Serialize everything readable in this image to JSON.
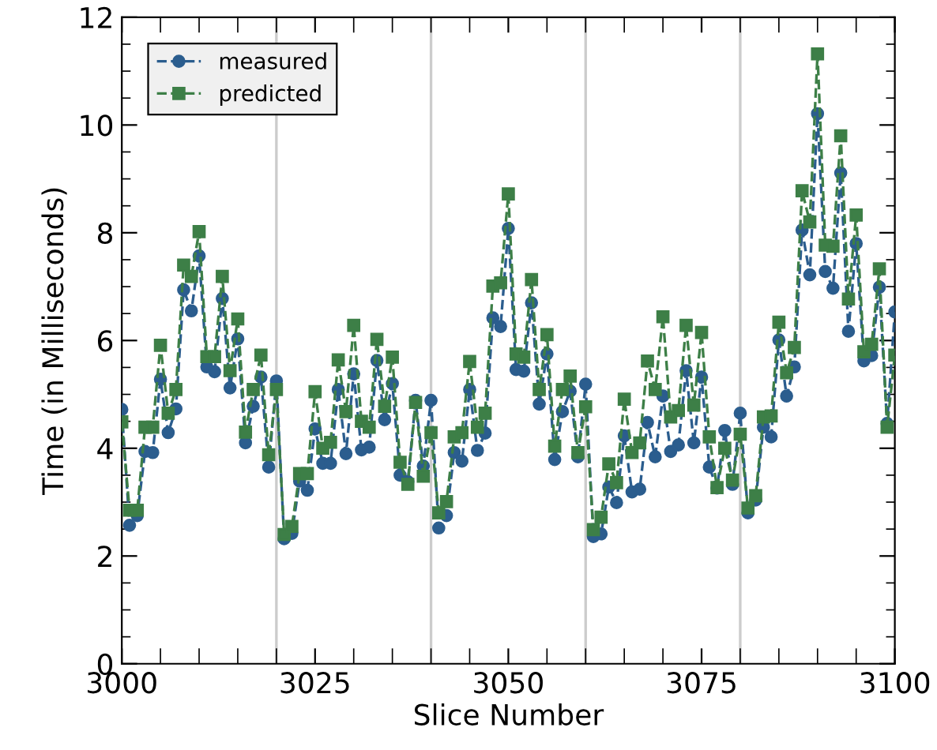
{
  "chart_data": {
    "type": "line",
    "xlabel": "Slice Number",
    "ylabel": "Time (in Milliseconds)",
    "x": [
      3000,
      3001,
      3002,
      3003,
      3004,
      3005,
      3006,
      3007,
      3008,
      3009,
      3010,
      3011,
      3012,
      3013,
      3014,
      3015,
      3016,
      3017,
      3018,
      3019,
      3020,
      3021,
      3022,
      3023,
      3024,
      3025,
      3026,
      3027,
      3028,
      3029,
      3030,
      3031,
      3032,
      3033,
      3034,
      3035,
      3036,
      3037,
      3038,
      3039,
      3040,
      3041,
      3042,
      3043,
      3044,
      3045,
      3046,
      3047,
      3048,
      3049,
      3050,
      3051,
      3052,
      3053,
      3054,
      3055,
      3056,
      3057,
      3058,
      3059,
      3060,
      3061,
      3062,
      3063,
      3064,
      3065,
      3066,
      3067,
      3068,
      3069,
      3070,
      3071,
      3072,
      3073,
      3074,
      3075,
      3076,
      3077,
      3078,
      3079,
      3080,
      3081,
      3082,
      3083,
      3084,
      3085,
      3086,
      3087,
      3088,
      3089,
      3090,
      3091,
      3092,
      3093,
      3094,
      3095,
      3096,
      3097,
      3098,
      3099,
      3100
    ],
    "series": [
      {
        "name": "measured",
        "color": "#2b5d8e",
        "marker": "circle",
        "values": [
          4.72,
          2.57,
          2.75,
          3.94,
          3.92,
          5.28,
          4.29,
          4.73,
          6.94,
          6.55,
          7.57,
          5.51,
          5.42,
          6.78,
          5.12,
          6.03,
          4.1,
          4.78,
          5.32,
          3.65,
          5.25,
          2.32,
          2.42,
          3.39,
          3.22,
          4.36,
          3.72,
          3.72,
          5.09,
          3.9,
          5.38,
          3.97,
          4.02,
          5.63,
          4.53,
          5.2,
          3.5,
          3.38,
          4.89,
          3.67,
          4.89,
          2.52,
          2.75,
          3.92,
          3.76,
          5.09,
          3.96,
          4.28,
          6.42,
          6.26,
          8.08,
          5.46,
          5.43,
          6.7,
          4.82,
          5.75,
          3.79,
          4.68,
          5.06,
          3.84,
          5.19,
          2.36,
          2.41,
          3.28,
          2.99,
          4.23,
          3.19,
          3.24,
          4.48,
          3.84,
          4.97,
          3.94,
          4.06,
          5.44,
          4.1,
          5.32,
          3.65,
          3.26,
          4.33,
          3.33,
          4.65,
          2.8,
          3.04,
          4.39,
          4.21,
          6.01,
          4.97,
          5.51,
          8.05,
          7.22,
          10.21,
          7.28,
          6.97,
          9.11,
          6.17,
          7.8,
          5.62,
          5.72,
          6.99,
          4.46,
          6.53
        ]
      },
      {
        "name": "predicted",
        "color": "#3d7f47",
        "marker": "square",
        "values": [
          4.49,
          2.85,
          2.85,
          4.39,
          4.39,
          5.91,
          4.65,
          5.09,
          7.4,
          7.19,
          8.02,
          5.7,
          5.7,
          7.19,
          5.44,
          6.4,
          4.3,
          5.09,
          5.73,
          3.88,
          5.09,
          2.4,
          2.55,
          3.53,
          3.53,
          5.05,
          4.0,
          4.11,
          5.64,
          4.68,
          6.28,
          4.5,
          4.39,
          6.02,
          4.78,
          5.69,
          3.74,
          3.33,
          4.85,
          3.48,
          4.29,
          2.8,
          3.01,
          4.21,
          4.29,
          5.61,
          4.39,
          4.65,
          7.01,
          7.07,
          8.72,
          5.75,
          5.69,
          7.13,
          5.09,
          6.11,
          4.04,
          5.09,
          5.34,
          3.92,
          4.77,
          2.49,
          2.72,
          3.71,
          3.36,
          4.91,
          3.92,
          4.1,
          5.62,
          5.09,
          6.44,
          4.58,
          4.7,
          6.28,
          4.8,
          6.15,
          4.21,
          3.27,
          4.0,
          3.41,
          4.26,
          2.89,
          3.12,
          4.58,
          4.6,
          6.34,
          5.4,
          5.87,
          8.78,
          8.2,
          11.32,
          7.77,
          7.75,
          9.8,
          6.77,
          8.33,
          5.79,
          5.93,
          7.33,
          4.39,
          5.73
        ]
      }
    ],
    "line_style": "dashed",
    "xlim": [
      3000,
      3100
    ],
    "xticks": [
      3000,
      {
        "value": 3005,
        "label": null
      },
      {
        "value": 3010,
        "label": null
      },
      {
        "value": 3015,
        "label": null
      },
      {
        "value": 3020,
        "label": null
      },
      {
        "value": 3025,
        "label": "3025"
      },
      {
        "value": 3030,
        "label": null
      },
      {
        "value": 3035,
        "label": null
      },
      {
        "value": 3040,
        "label": null
      },
      {
        "value": 3045,
        "label": null
      },
      {
        "value": 3050,
        "label": "3050"
      },
      {
        "value": 3055,
        "label": null
      },
      {
        "value": 3060,
        "label": null
      },
      {
        "value": 3065,
        "label": null
      },
      {
        "value": 3070,
        "label": null
      },
      {
        "value": 3075,
        "label": "3075"
      },
      {
        "value": 3080,
        "label": null
      },
      {
        "value": 3085,
        "label": null
      },
      {
        "value": 3090,
        "label": null
      },
      {
        "value": 3095,
        "label": null
      },
      3100
    ],
    "ylim": [
      0,
      12
    ],
    "yticks": [
      0,
      {
        "value": 0.5,
        "label": null
      },
      {
        "value": 1,
        "label": null
      },
      {
        "value": 1.5,
        "label": null
      },
      2,
      {
        "value": 2.5,
        "label": null
      },
      {
        "value": 3,
        "label": null
      },
      {
        "value": 3.5,
        "label": null
      },
      4,
      {
        "value": 4.5,
        "label": null
      },
      {
        "value": 5,
        "label": null
      },
      {
        "value": 5.5,
        "label": null
      },
      6,
      {
        "value": 6.5,
        "label": null
      },
      {
        "value": 7,
        "label": null
      },
      {
        "value": 7.5,
        "label": null
      },
      8,
      {
        "value": 8.5,
        "label": null
      },
      {
        "value": 9,
        "label": null
      },
      {
        "value": 9.5,
        "label": null
      },
      10,
      {
        "value": 10.5,
        "label": null
      },
      {
        "value": 11,
        "label": null
      },
      {
        "value": 11.5,
        "label": null
      },
      12
    ],
    "ref_lines": [
      {
        "axis": "x",
        "value": 3020,
        "color": "#cccccc"
      },
      {
        "axis": "x",
        "value": 3040,
        "color": "#cccccc"
      },
      {
        "axis": "x",
        "value": 3060,
        "color": "#cccccc"
      },
      {
        "axis": "x",
        "value": 3080,
        "color": "#cccccc"
      }
    ],
    "grid": false,
    "legend": "top left"
  }
}
